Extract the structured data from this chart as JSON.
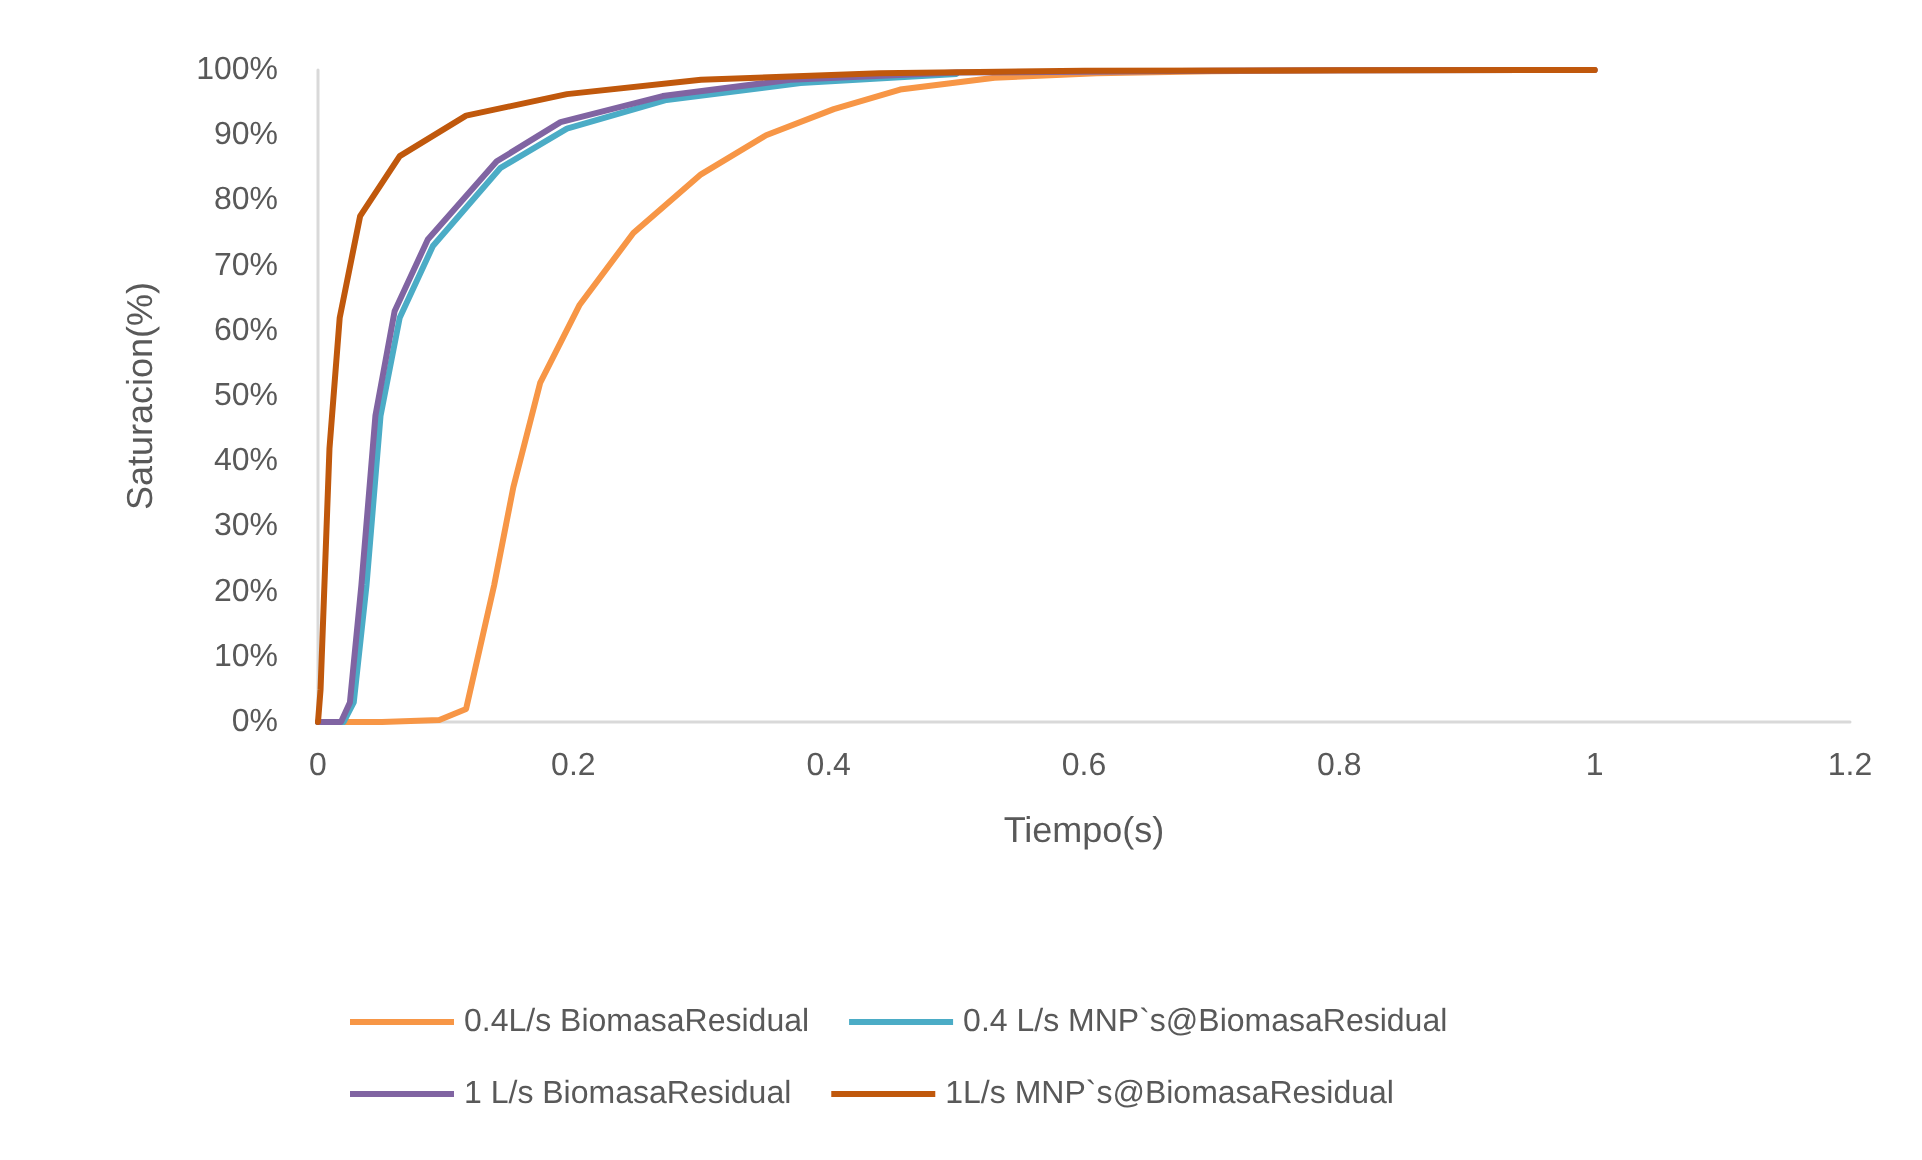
{
  "chart_data": {
    "type": "line",
    "xlabel": "Tiempo(s)",
    "ylabel": "Saturacion(%)",
    "xlim": [
      0,
      1.2
    ],
    "xticks": [
      0,
      0.2,
      0.4,
      0.6,
      0.8,
      1,
      1.2
    ],
    "ylim": [
      0,
      100
    ],
    "yticks": [
      {
        "value": 0,
        "label": "0%"
      },
      {
        "value": 10,
        "label": "10%"
      },
      {
        "value": 20,
        "label": "20%"
      },
      {
        "value": 30,
        "label": "30%"
      },
      {
        "value": 40,
        "label": "40%"
      },
      {
        "value": 50,
        "label": "50%"
      },
      {
        "value": 60,
        "label": "60%"
      },
      {
        "value": 70,
        "label": "70%"
      },
      {
        "value": 80,
        "label": "80%"
      },
      {
        "value": 90,
        "label": "90%"
      },
      {
        "value": 100,
        "label": "100%"
      }
    ],
    "grid": false,
    "legend": "bottom",
    "marker": "none",
    "line_style": "solid",
    "series": [
      {
        "name": "0.4L/s BiomasaResidual",
        "color": "#f79646",
        "x": [
          0,
          0.05,
          0.095,
          0.116,
          0.138,
          0.153,
          0.174,
          0.205,
          0.247,
          0.3,
          0.351,
          0.404,
          0.456,
          0.53,
          0.61,
          0.7,
          0.8,
          1
        ],
        "values": [
          0,
          0,
          0.3,
          2,
          21,
          36,
          52,
          64,
          75,
          84,
          90,
          94,
          97,
          98.8,
          99.5,
          99.8,
          100,
          100
        ]
      },
      {
        "name": "0.4 L/s MNP`s@BiomasaResidual",
        "color": "#4bacc6",
        "x": [
          0,
          0.02,
          0.028,
          0.038,
          0.049,
          0.064,
          0.09,
          0.143,
          0.195,
          0.273,
          0.378,
          0.5
        ],
        "values": [
          0,
          0,
          3,
          21,
          47,
          62,
          73,
          85,
          91,
          95.4,
          98,
          99.4
        ]
      },
      {
        "name": "1 L/s BiomasaResidual",
        "color": "#8064a2",
        "x": [
          0,
          0.018,
          0.025,
          0.034,
          0.045,
          0.06,
          0.086,
          0.14,
          0.19,
          0.27,
          0.37,
          0.5,
          0.7,
          1
        ],
        "values": [
          0,
          0,
          3,
          21,
          47,
          63,
          74,
          86,
          92,
          96,
          98.5,
          99.6,
          99.9,
          100
        ]
      },
      {
        "name": "1L/s MNP`s@BiomasaResidual",
        "color": "#c0580c",
        "x": [
          0,
          0.002,
          0.009,
          0.017,
          0.033,
          0.064,
          0.116,
          0.195,
          0.3,
          0.44,
          0.6,
          1
        ],
        "values": [
          0,
          5,
          42,
          62,
          77.6,
          86.8,
          93,
          96.3,
          98.5,
          99.5,
          99.9,
          100
        ]
      }
    ]
  }
}
